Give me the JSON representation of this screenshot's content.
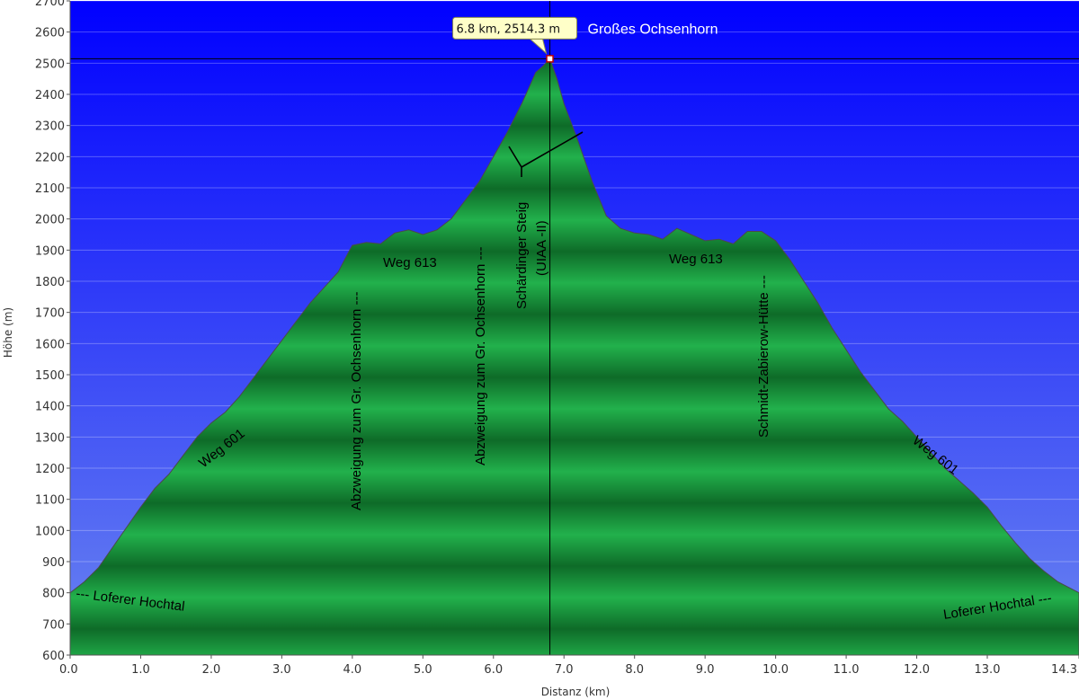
{
  "chart_data": {
    "type": "area",
    "title": "",
    "xlabel": "Distanz   (km)",
    "ylabel": "Höhe (m)",
    "xlim": [
      0,
      14.3
    ],
    "ylim": [
      600,
      2700
    ],
    "x_ticks": [
      "0.0",
      "1.0",
      "2.0",
      "3.0",
      "4.0",
      "5.0",
      "6.0",
      "7.0",
      "8.0",
      "9.0",
      "10.0",
      "11.0",
      "12.0",
      "13.0",
      "14.3"
    ],
    "y_ticks": [
      "600",
      "700",
      "800",
      "900",
      "1000",
      "1100",
      "1200",
      "1300",
      "1400",
      "1500",
      "1600",
      "1700",
      "1800",
      "1900",
      "2000",
      "2100",
      "2200",
      "2300",
      "2400",
      "2500",
      "2600",
      "2700"
    ],
    "grid": true,
    "colors": {
      "sky_top": "#0000ff",
      "sky_bottom": "#6a85f0",
      "fill_dark": "#0e6b28",
      "fill_light": "#22b14c",
      "outline": "#4a4a4a",
      "tooltip_bg": "#ffffc8"
    },
    "series": [
      {
        "x": [
          0.0,
          0.2,
          0.4,
          0.6,
          0.8,
          1.0,
          1.2,
          1.4,
          1.6,
          1.8,
          2.0,
          2.2,
          2.4,
          2.6,
          2.8,
          3.0,
          3.2,
          3.4,
          3.6,
          3.8,
          3.95,
          4.0,
          4.2,
          4.4,
          4.6,
          4.8,
          5.0,
          5.2,
          5.4,
          5.6,
          5.8,
          6.0,
          6.2,
          6.4,
          6.5,
          6.6,
          6.7,
          6.8,
          6.9,
          7.0,
          7.2,
          7.4,
          7.6,
          7.8,
          8.0,
          8.2,
          8.4,
          8.6,
          8.8,
          9.0,
          9.2,
          9.4,
          9.6,
          9.8,
          10.0,
          10.2,
          10.4,
          10.6,
          10.8,
          11.0,
          11.2,
          11.4,
          11.6,
          11.8,
          12.0,
          12.2,
          12.4,
          12.6,
          12.8,
          13.0,
          13.2,
          13.4,
          13.6,
          13.8,
          14.0,
          14.3
        ],
        "y": [
          800,
          835,
          880,
          945,
          1010,
          1075,
          1135,
          1180,
          1240,
          1300,
          1345,
          1380,
          1430,
          1490,
          1550,
          1610,
          1670,
          1730,
          1780,
          1830,
          1895,
          1915,
          1925,
          1920,
          1955,
          1965,
          1950,
          1965,
          2000,
          2060,
          2120,
          2200,
          2280,
          2370,
          2420,
          2470,
          2490,
          2514,
          2450,
          2370,
          2250,
          2120,
          2010,
          1970,
          1955,
          1950,
          1935,
          1970,
          1950,
          1930,
          1935,
          1920,
          1960,
          1960,
          1930,
          1870,
          1800,
          1730,
          1650,
          1580,
          1510,
          1450,
          1390,
          1350,
          1300,
          1250,
          1200,
          1160,
          1120,
          1075,
          1015,
          960,
          910,
          870,
          835,
          800
        ]
      }
    ],
    "marker": {
      "x": 6.8,
      "y": 2514.3,
      "tooltip": "6.8 km, 2514.3 m",
      "label": "Großes Ochsenhorn"
    },
    "annotations": [
      "--- Loferer Hochtal",
      "Weg 601",
      "Abzweigung zum Gr. Ochsenhorn ---",
      "Weg 613",
      "Abzweigung zum Gr. Ochsenhorn ---",
      "Schärdinger Steig",
      "(UIAA -II)",
      "Weg 613",
      "Schmidt-Zabierow-Hütte ---",
      "Weg 601",
      "Loferer Hochtal ---"
    ]
  }
}
